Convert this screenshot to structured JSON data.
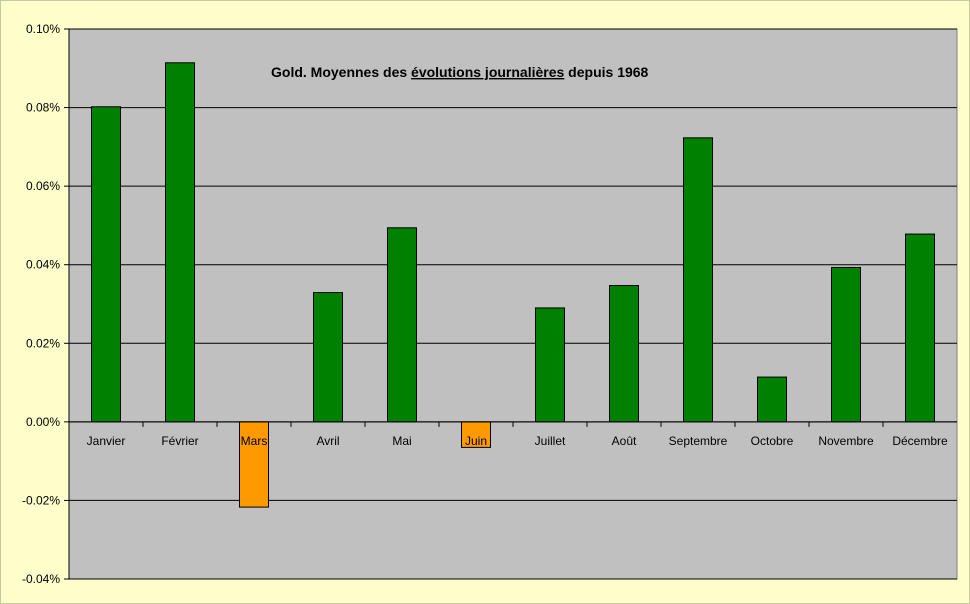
{
  "chart_data": {
    "type": "bar",
    "title_parts": {
      "prefix": "Gold. Moyennes des ",
      "underlined": "évolutions journalières",
      "suffix": " depuis 1968"
    },
    "categories": [
      "Janvier",
      "Février",
      "Mars",
      "Avril",
      "Mai",
      "Juin",
      "Juillet",
      "Août",
      "Septembre",
      "Octobre",
      "Novembre",
      "Décembre"
    ],
    "values": [
      0.0802,
      0.0914,
      -0.0217,
      0.0329,
      0.0494,
      -0.0065,
      0.029,
      0.0347,
      0.0723,
      0.0114,
      0.0393,
      0.0478
    ],
    "ylim": [
      -0.04,
      0.1
    ],
    "yticks": [
      0.1,
      0.08,
      0.06,
      0.04,
      0.02,
      0.0,
      -0.02,
      -0.04
    ],
    "ytick_labels": [
      "0.10%",
      "0.08%",
      "0.06%",
      "0.04%",
      "0.02%",
      "0.00%",
      "-0.02%",
      "-0.04%"
    ],
    "grid": true,
    "colors": {
      "positive": "#008000",
      "negative": "#ff9900",
      "plot_background": "#c0c0c0",
      "page_background": "#ffffcc"
    }
  }
}
